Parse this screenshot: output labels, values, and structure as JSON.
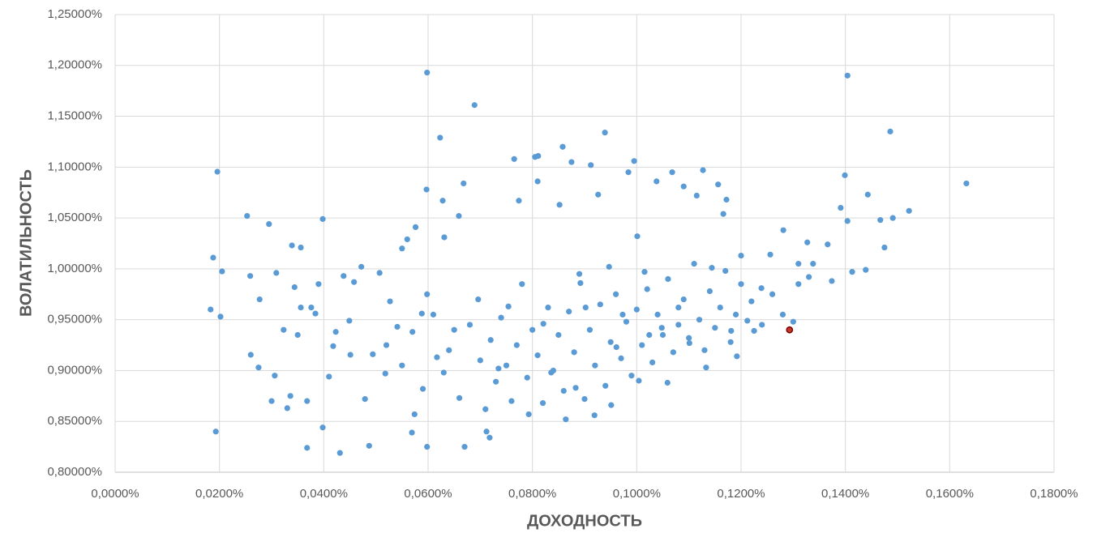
{
  "chart_data": {
    "type": "scatter",
    "xlabel": "ДОХОДНОСТЬ",
    "ylabel": "ВОЛАТИЛЬНОСТЬ",
    "xlim": [
      0,
      0.18
    ],
    "ylim": [
      0.8,
      1.25
    ],
    "grid": true,
    "xticks": [
      {
        "value": 0,
        "label": "0,0000%"
      },
      {
        "value": 0.02,
        "label": "0,0200%"
      },
      {
        "value": 0.04,
        "label": "0,0400%"
      },
      {
        "value": 0.06,
        "label": "0,0600%"
      },
      {
        "value": 0.08,
        "label": "0,0800%"
      },
      {
        "value": 0.1,
        "label": "0,1000%"
      },
      {
        "value": 0.12,
        "label": "0,1200%"
      },
      {
        "value": 0.14,
        "label": "0,1400%"
      },
      {
        "value": 0.16,
        "label": "0,1600%"
      },
      {
        "value": 0.18,
        "label": "0,1800%"
      }
    ],
    "yticks": [
      {
        "value": 0.8,
        "label": "0,80000%"
      },
      {
        "value": 0.85,
        "label": "0,85000%"
      },
      {
        "value": 0.9,
        "label": "0,90000%"
      },
      {
        "value": 0.95,
        "label": "0,95000%"
      },
      {
        "value": 1.0,
        "label": "1,00000%"
      },
      {
        "value": 1.05,
        "label": "1,05000%"
      },
      {
        "value": 1.1,
        "label": "1,10000%"
      },
      {
        "value": 1.15,
        "label": "1,15000%"
      },
      {
        "value": 1.2,
        "label": "1,20000%"
      },
      {
        "value": 1.25,
        "label": "1,25000%"
      }
    ],
    "series": [
      {
        "color": "#5b9bd5",
        "x": [
          0.0188,
          0.0196,
          0.0205,
          0.0183,
          0.0202,
          0.0193,
          0.0253,
          0.0259,
          0.026,
          0.0277,
          0.0275,
          0.0295,
          0.0309,
          0.0306,
          0.03,
          0.0323,
          0.033,
          0.0336,
          0.0339,
          0.0344,
          0.035,
          0.0356,
          0.0356,
          0.0368,
          0.0368,
          0.0376,
          0.0384,
          0.039,
          0.0398,
          0.0398,
          0.041,
          0.0418,
          0.0423,
          0.0431,
          0.0438,
          0.0449,
          0.0451,
          0.0458,
          0.0472,
          0.0479,
          0.0487,
          0.0494,
          0.0507,
          0.0518,
          0.0527,
          0.0541,
          0.055,
          0.056,
          0.0569,
          0.0574,
          0.0576,
          0.0588,
          0.0597,
          0.0598,
          0.0598,
          0.0598,
          0.0617,
          0.0623,
          0.0628,
          0.0631,
          0.065,
          0.0659,
          0.0668,
          0.067,
          0.0689,
          0.0696,
          0.0712,
          0.0718,
          0.0735,
          0.0754,
          0.0765,
          0.0774,
          0.0793,
          0.0805,
          0.0811,
          0.081,
          0.0821,
          0.0836,
          0.0852,
          0.0858,
          0.0864,
          0.0875,
          0.0883,
          0.0892,
          0.0902,
          0.0912,
          0.0919,
          0.0926,
          0.0939,
          0.0947,
          0.0951,
          0.0961,
          0.0973,
          0.0984,
          0.0995,
          0.1001,
          0.1004,
          0.1015,
          0.1024,
          0.1038,
          0.1048,
          0.1059,
          0.1068,
          0.108,
          0.109,
          0.1101,
          0.1115,
          0.1127,
          0.1133,
          0.1144,
          0.1156,
          0.1166,
          0.1172,
          0.1181,
          0.1192,
          0.12,
          0.1212,
          0.1225,
          0.1239,
          0.1256,
          0.1281,
          0.13,
          0.131,
          0.1327,
          0.1338,
          0.1366,
          0.1374,
          0.1391,
          0.1399,
          0.1404,
          0.1404,
          0.1413,
          0.1439,
          0.1443,
          0.1467,
          0.1475,
          0.1486,
          0.1491,
          0.1522,
          0.1632,
          0.052,
          0.055,
          0.057,
          0.059,
          0.061,
          0.063,
          0.064,
          0.066,
          0.068,
          0.07,
          0.071,
          0.072,
          0.073,
          0.074,
          0.075,
          0.076,
          0.077,
          0.078,
          0.079,
          0.08,
          0.081,
          0.082,
          0.083,
          0.084,
          0.085,
          0.086,
          0.087,
          0.088,
          0.089,
          0.09,
          0.091,
          0.092,
          0.093,
          0.094,
          0.095,
          0.096,
          0.097,
          0.098,
          0.099,
          0.1,
          0.101,
          0.102,
          0.103,
          0.104,
          0.105,
          0.106,
          0.107,
          0.108,
          0.109,
          0.11,
          0.111,
          0.112,
          0.113,
          0.114,
          0.115,
          0.116,
          0.117,
          0.118,
          0.119,
          0.12,
          0.122,
          0.124,
          0.126,
          0.128,
          0.131,
          0.133
        ],
        "values": [
          1.011,
          1.0955,
          0.9975,
          0.96,
          0.953,
          0.84,
          1.052,
          0.993,
          0.9155,
          0.97,
          0.903,
          1.044,
          0.996,
          0.895,
          0.87,
          0.94,
          0.863,
          0.875,
          1.023,
          0.982,
          0.935,
          1.021,
          0.962,
          0.824,
          0.87,
          0.962,
          0.956,
          0.985,
          1.049,
          0.844,
          0.894,
          0.924,
          0.938,
          0.819,
          0.993,
          0.949,
          0.9155,
          0.987,
          1.002,
          0.872,
          0.826,
          0.916,
          0.996,
          0.897,
          0.968,
          0.943,
          1.02,
          1.029,
          0.839,
          0.857,
          1.041,
          0.956,
          1.078,
          1.193,
          0.825,
          0.975,
          0.913,
          1.129,
          1.067,
          1.031,
          0.94,
          1.052,
          1.084,
          0.825,
          1.161,
          0.97,
          0.84,
          0.834,
          0.902,
          0.963,
          1.108,
          1.067,
          0.857,
          1.11,
          1.111,
          1.086,
          0.946,
          0.898,
          1.063,
          1.12,
          0.852,
          1.105,
          0.883,
          0.986,
          0.962,
          1.102,
          0.856,
          1.073,
          1.134,
          1.002,
          0.866,
          0.923,
          0.955,
          1.095,
          1.106,
          1.032,
          0.89,
          0.997,
          0.935,
          1.086,
          0.942,
          0.888,
          1.095,
          0.962,
          1.081,
          0.927,
          1.072,
          1.097,
          0.903,
          1.001,
          1.083,
          1.054,
          1.068,
          0.939,
          0.914,
          1.013,
          0.949,
          0.939,
          0.981,
          1.014,
          1.038,
          0.948,
          1.005,
          1.026,
          1.005,
          1.024,
          0.988,
          1.06,
          1.092,
          1.19,
          1.047,
          0.997,
          0.999,
          1.073,
          1.048,
          1.021,
          1.135,
          1.05,
          1.057,
          1.084,
          0.925,
          0.905,
          0.938,
          0.882,
          0.955,
          0.898,
          0.92,
          0.873,
          0.945,
          0.91,
          0.862,
          0.93,
          0.889,
          0.952,
          0.905,
          0.87,
          0.925,
          0.985,
          0.893,
          0.94,
          0.915,
          0.868,
          0.962,
          0.9,
          0.935,
          0.88,
          0.958,
          0.918,
          0.995,
          0.872,
          0.94,
          0.905,
          0.965,
          0.885,
          0.928,
          0.975,
          0.912,
          0.948,
          0.895,
          0.96,
          0.925,
          0.98,
          0.908,
          0.955,
          0.935,
          0.99,
          0.918,
          0.945,
          0.97,
          0.932,
          1.005,
          0.95,
          0.92,
          0.978,
          0.942,
          0.962,
          0.998,
          0.928,
          0.955,
          0.985,
          0.968,
          0.945,
          0.975,
          0.955,
          0.985,
          0.992
        ]
      },
      {
        "color": "#c0392b",
        "x": [
          0.1293
        ],
        "values": [
          0.94
        ]
      }
    ]
  }
}
